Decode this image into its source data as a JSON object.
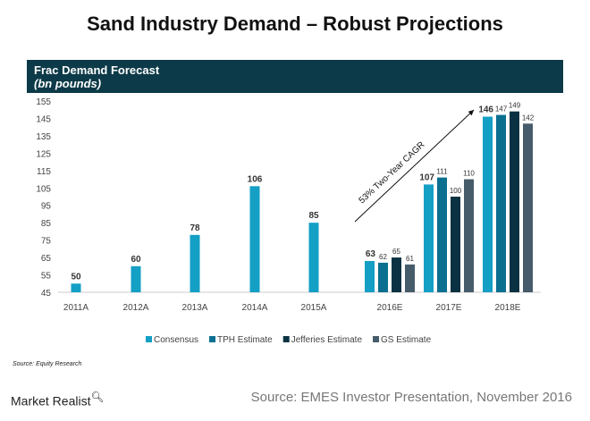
{
  "title": "Sand Industry Demand – Robust Projections",
  "logo": "Market Realist",
  "source_footer": "Source: EMES Investor Presentation, November 2016",
  "chart_data": {
    "type": "bar",
    "title": "Frac Demand Forecast",
    "subtitle": "(bn pounds)",
    "ylim": [
      45,
      155
    ],
    "yticks": [
      45,
      55,
      65,
      75,
      85,
      95,
      105,
      115,
      125,
      135,
      145,
      155
    ],
    "categories": [
      "2011A",
      "2012A",
      "2013A",
      "2014A",
      "2015A",
      "2016E",
      "2017E",
      "2018E"
    ],
    "series": [
      {
        "name": "Consensus",
        "color": "#149fc5",
        "values": [
          50,
          60,
          78,
          106,
          85,
          63,
          107,
          146
        ]
      },
      {
        "name": "TPH Estimate",
        "color": "#0b6f90",
        "values": [
          null,
          null,
          null,
          null,
          null,
          62,
          111,
          147
        ]
      },
      {
        "name": "Jefferies Estimate",
        "color": "#0b3242",
        "values": [
          null,
          null,
          null,
          null,
          null,
          65,
          100,
          149
        ]
      },
      {
        "name": "GS Estimate",
        "color": "#475c6a",
        "values": [
          null,
          null,
          null,
          null,
          null,
          61,
          110,
          142
        ]
      }
    ],
    "annotation": "53% Two-Year CAGR",
    "source": "Source:  Equity Research",
    "legend": "bottom"
  }
}
